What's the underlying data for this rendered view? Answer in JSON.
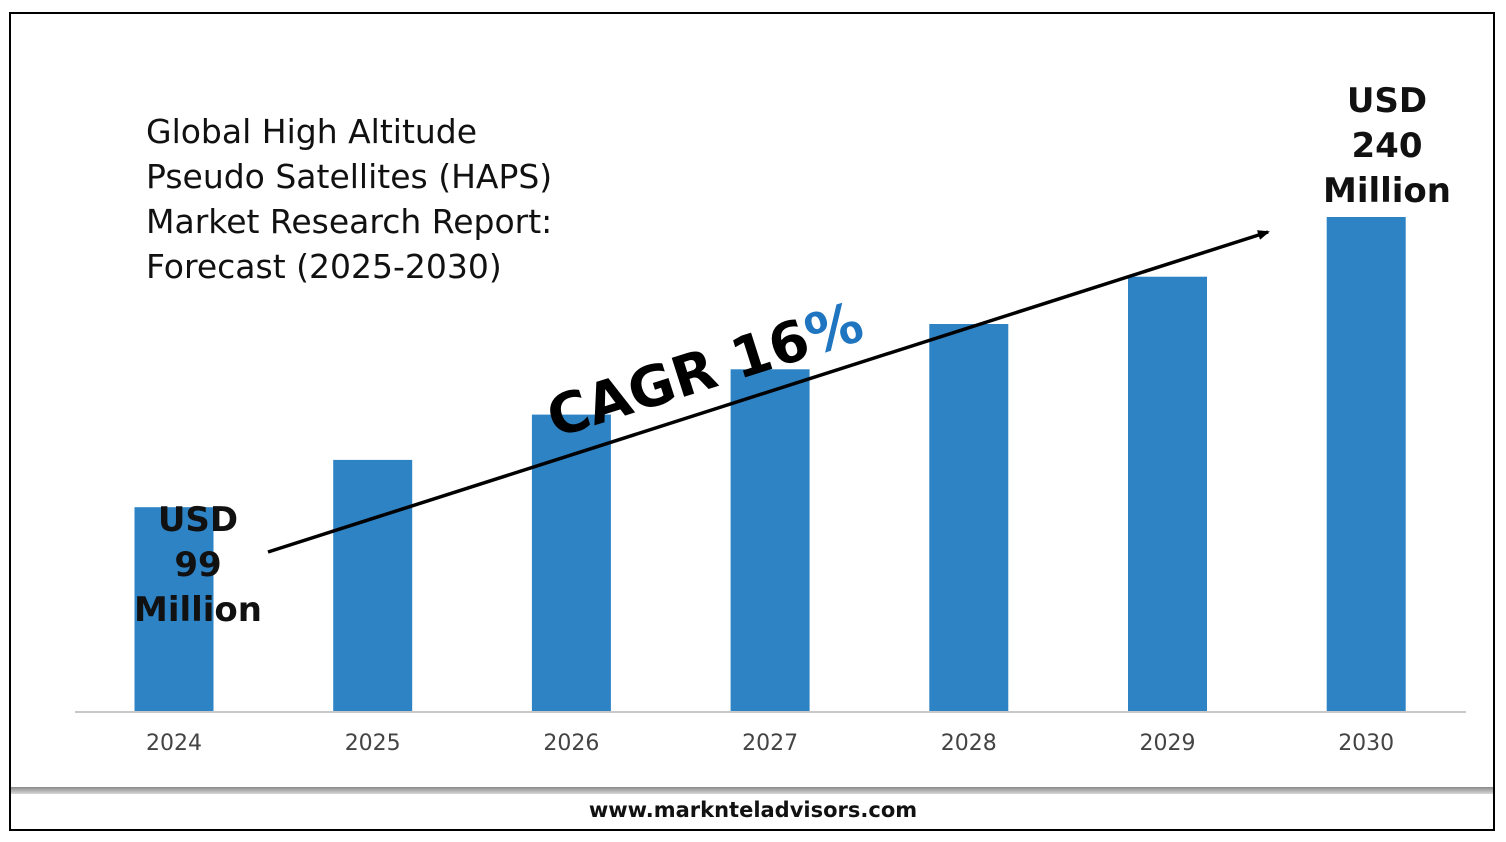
{
  "chart_data": {
    "type": "bar",
    "title_lines": [
      "Global High Altitude",
      "Pseudo Satellites (HAPS)",
      "Market Research Report:",
      "Forecast (2025-2030)"
    ],
    "categories": [
      "2024",
      "2025",
      "2026",
      "2027",
      "2028",
      "2029",
      "2030"
    ],
    "values": [
      99,
      122,
      144,
      166,
      188,
      211,
      240
    ],
    "units": "USD Million",
    "ylim": [
      0,
      240
    ],
    "grid": false,
    "bar_color": "#2e83c5",
    "annotations": {
      "start": [
        "USD",
        "99",
        "Million"
      ],
      "end": [
        "USD",
        "240",
        "Million"
      ],
      "cagr_prefix": "CAGR 16",
      "cagr_suffix": "%",
      "cagr_prefix_color": "#000000",
      "cagr_suffix_color": "#1f75c0"
    }
  },
  "footer": {
    "url": "www.marknteladvisors.com"
  }
}
